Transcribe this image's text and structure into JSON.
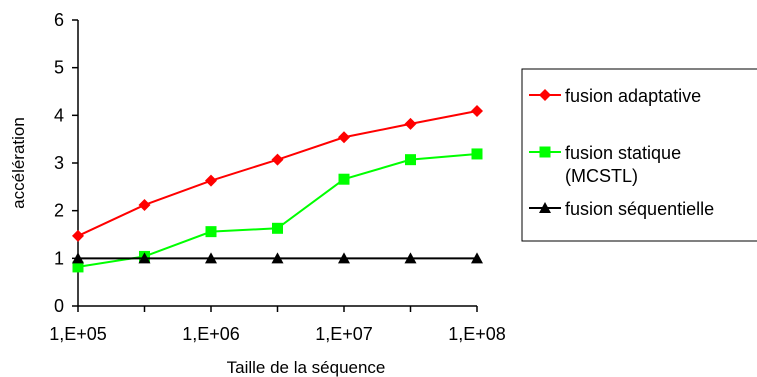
{
  "chart_data": {
    "type": "line",
    "title": "",
    "xlabel": "Taille de la séquence",
    "ylabel": "accélération",
    "x_scale": "log",
    "xlim": [
      100000,
      100000000
    ],
    "ylim": [
      0,
      6
    ],
    "x_ticks": [
      100000,
      1000000,
      10000000,
      100000000
    ],
    "x_tick_labels": [
      "1,E+05",
      "1,E+06",
      "1,E+07",
      "1,E+08"
    ],
    "y_ticks": [
      0,
      1,
      2,
      3,
      4,
      5,
      6
    ],
    "y_tick_labels": [
      "0",
      "1",
      "2",
      "3",
      "4",
      "5",
      "6"
    ],
    "grid": false,
    "legend_position": "right",
    "x": [
      100000,
      316228,
      1000000,
      3162278,
      10000000,
      31622777,
      100000000
    ],
    "series": [
      {
        "name": "fusion adaptative",
        "legend_lines": [
          "fusion adaptative"
        ],
        "color": "#ff0000",
        "marker": "diamond",
        "values": [
          1.47,
          2.12,
          2.63,
          3.07,
          3.54,
          3.82,
          4.09
        ]
      },
      {
        "name": "fusion statique (MCSTL)",
        "legend_lines": [
          "fusion statique",
          "(MCSTL)"
        ],
        "color": "#00ff00",
        "marker": "square",
        "values": [
          0.82,
          1.04,
          1.56,
          1.63,
          2.66,
          3.07,
          3.19
        ]
      },
      {
        "name": "fusion séquentielle",
        "legend_lines": [
          "fusion séquentielle"
        ],
        "color": "#000000",
        "marker": "triangle",
        "values": [
          1.0,
          1.0,
          1.0,
          1.0,
          1.0,
          1.0,
          1.0
        ]
      }
    ]
  }
}
